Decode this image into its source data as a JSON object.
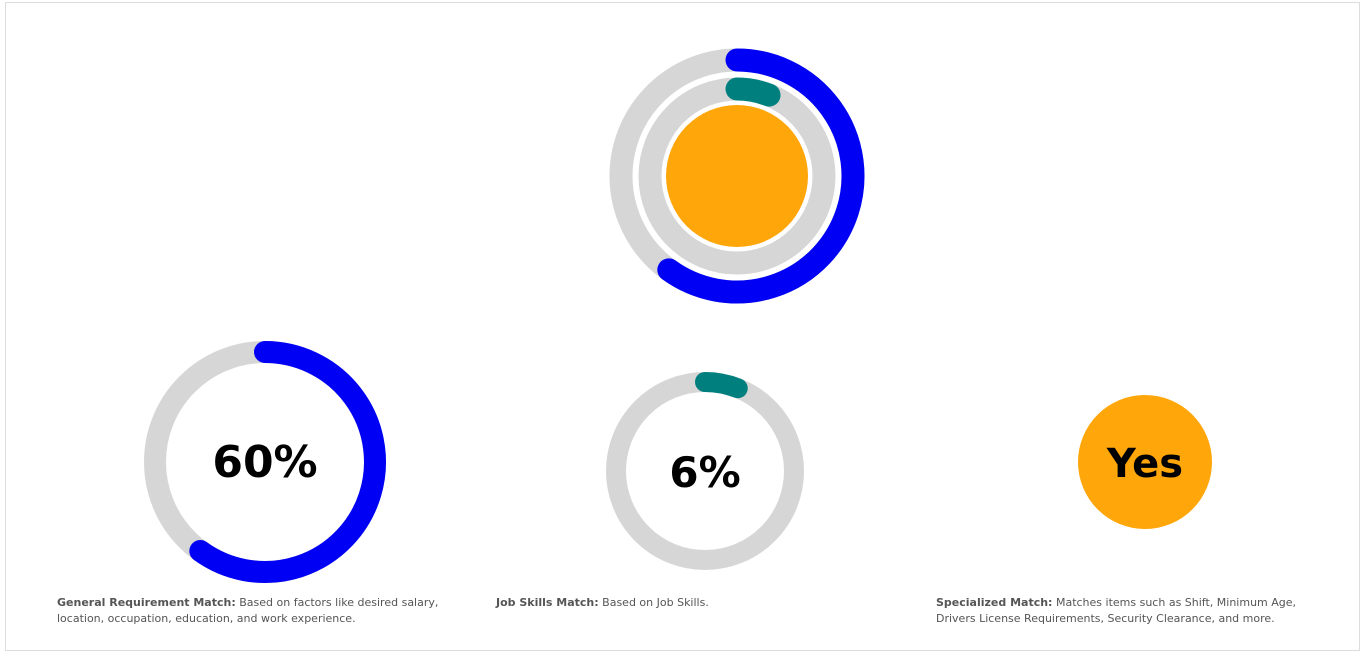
{
  "colors": {
    "track": "#d6d6d6",
    "general": "#0000f5",
    "skills": "#007f7f",
    "specialized": "#ffa60b",
    "text": "#000000",
    "caption": "#555555"
  },
  "metrics": {
    "general": {
      "value": 60,
      "label": "60%"
    },
    "skills": {
      "value": 6,
      "label": "6%"
    },
    "specialized": {
      "value": "Yes",
      "label": "Yes"
    }
  },
  "captions": {
    "general": {
      "title": "General Requirement Match:",
      "text": " Based on factors like desired salary, location, occupation, education, and work experience."
    },
    "skills": {
      "title": "Job Skills Match:",
      "text": " Based on Job Skills."
    },
    "specialized": {
      "title": "Specialized Match:",
      "text": " Matches items such as Shift, Minimum Age, Drivers License Requirements, Security Clearance, and more."
    }
  }
}
